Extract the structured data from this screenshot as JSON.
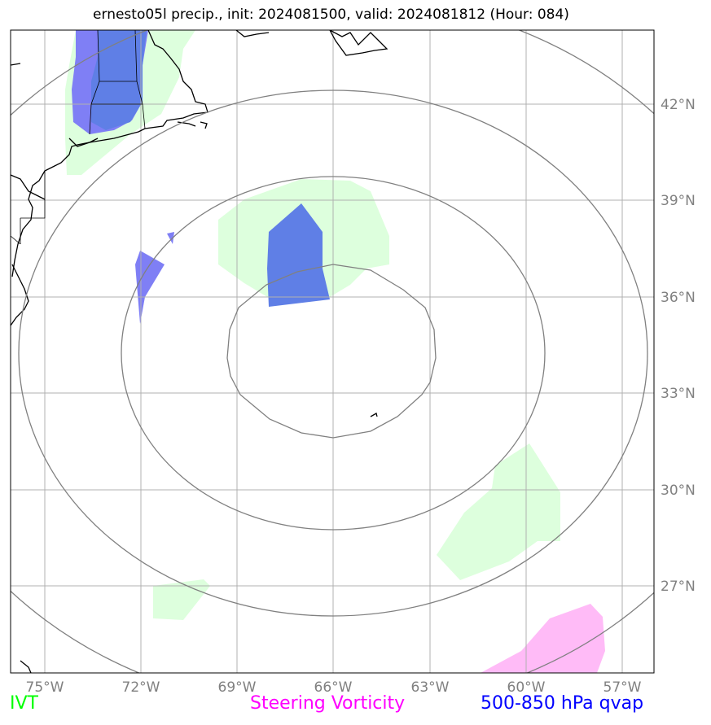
{
  "title": "ernesto05l precip., init: 2024081500, valid: 2024081812 (Hour: 084)",
  "longitude_ticks": [
    "75°W",
    "72°W",
    "69°W",
    "66°W",
    "63°W",
    "60°W",
    "57°W"
  ],
  "latitude_ticks": [
    "42°N",
    "39°N",
    "36°N",
    "33°N",
    "30°N",
    "27°N"
  ],
  "legend": [
    {
      "label": "IVT",
      "color": "#00ff00"
    },
    {
      "label": "Steering Vorticity",
      "color": "#ff00ff"
    },
    {
      "label": "500-850 hPa qvap",
      "color": "#0000ff"
    }
  ],
  "colors": {
    "ivt_fill": "#ddffdd",
    "qvap_fill": "#5f7fe6",
    "qvap_fill_light": "#7f7ff5",
    "vorticity_fill": "#ffbbf7",
    "grid": "#b0b0b0",
    "range_rings": "#808080",
    "tick_labels": "#808080",
    "coastline": "#000000"
  }
}
